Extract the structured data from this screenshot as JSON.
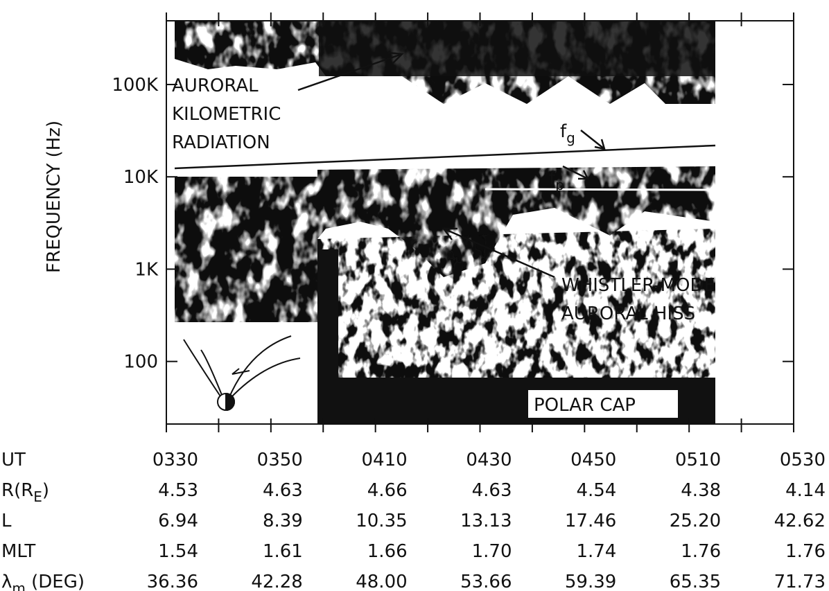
{
  "chart_data": {
    "type": "spectrogram",
    "y_label": "FREQUENCY (Hz)",
    "ylog": true,
    "ylim": [
      21,
      490000
    ],
    "yticks": [
      {
        "value": 100,
        "label": "100"
      },
      {
        "value": 1000,
        "label": "1K"
      },
      {
        "value": 10000,
        "label": "10K"
      },
      {
        "value": 100000,
        "label": "100K"
      }
    ],
    "annotations": {
      "akr": [
        "AURORAL",
        "KILOMETRIC",
        "RADIATION"
      ],
      "hiss": [
        "WHISTLER-MODE",
        "AURORAL  HISS"
      ],
      "fg": {
        "text": "f",
        "sub": "g"
      },
      "fp": {
        "text": "f",
        "sub": "p"
      },
      "polar_cap": "POLAR  CAP"
    },
    "table": {
      "rows": [
        {
          "label": {
            "text": "UT"
          },
          "cells": [
            "0330",
            "0350",
            "0410",
            "0430",
            "0450",
            "0510",
            "0530"
          ]
        },
        {
          "label": {
            "text": "R(R",
            "sub": "E",
            "after": ")"
          },
          "cells": [
            "4.53",
            "4.63",
            "4.66",
            "4.63",
            "4.54",
            "4.38",
            "4.14"
          ]
        },
        {
          "label": {
            "text": "L"
          },
          "cells": [
            "6.94",
            "8.39",
            "10.35",
            "13.13",
            "17.46",
            "25.20",
            "42.62"
          ]
        },
        {
          "label": {
            "text": "MLT"
          },
          "cells": [
            "1.54",
            "1.61",
            "1.66",
            "1.70",
            "1.74",
            "1.76",
            "1.76"
          ]
        },
        {
          "label": {
            "text": "λ",
            "sub": "m",
            "after": " (DEG)"
          },
          "cells": [
            "36.36",
            "42.28",
            "48.00",
            "53.66",
            "59.39",
            "65.35",
            "71.73"
          ]
        }
      ]
    }
  }
}
